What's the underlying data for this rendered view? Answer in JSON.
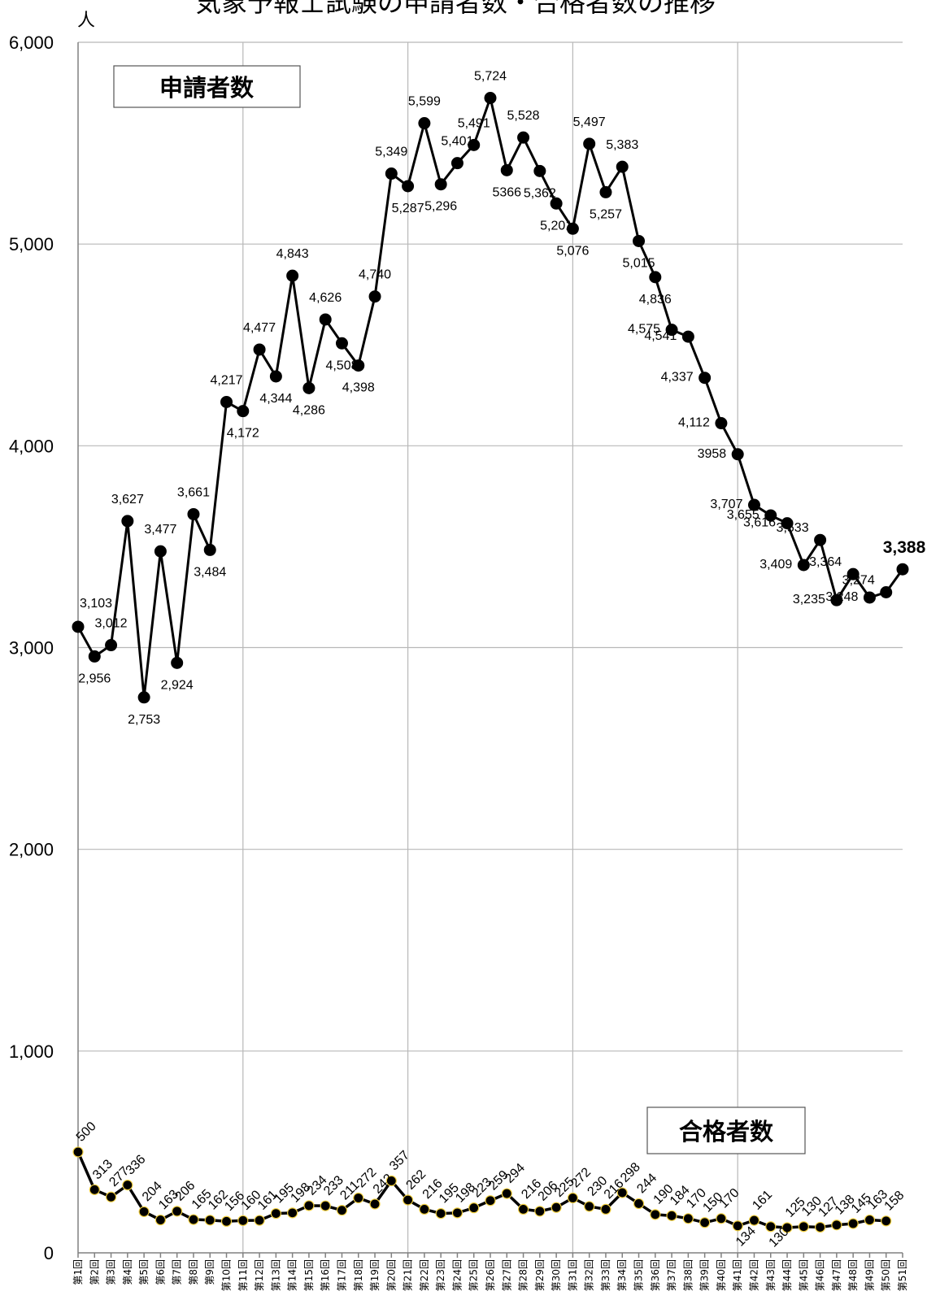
{
  "chart_data": {
    "type": "line",
    "title": "気象予報士試験の申請者数・合格者数の推移",
    "ylabel": "人",
    "ylim": [
      0,
      6000
    ],
    "yticks": [
      "0",
      "1,000",
      "2,000",
      "3,000",
      "4,000",
      "5,000",
      "6,000"
    ],
    "grid": true,
    "categories": [
      "第1回",
      "第2回",
      "第3回",
      "第4回",
      "第5回",
      "第6回",
      "第7回",
      "第8回",
      "第9回",
      "第10回",
      "第11回",
      "第12回",
      "第13回",
      "第14回",
      "第15回",
      "第16回",
      "第17回",
      "第18回",
      "第19回",
      "第20回",
      "第21回",
      "第22回",
      "第23回",
      "第24回",
      "第25回",
      "第26回",
      "第27回",
      "第28回",
      "第29回",
      "第30回",
      "第31回",
      "第32回",
      "第33回",
      "第34回",
      "第35回",
      "第36回",
      "第37回",
      "第38回",
      "第39回",
      "第40回",
      "第41回",
      "第42回",
      "第43回",
      "第44回",
      "第45回",
      "第46回",
      "第47回",
      "第48回",
      "第49回",
      "第50回",
      "第51回"
    ],
    "series": [
      {
        "name": "申請者数",
        "values": [
          3103,
          2956,
          3012,
          3627,
          2753,
          3477,
          2924,
          3661,
          3484,
          4217,
          4172,
          4477,
          4344,
          4843,
          4286,
          4626,
          4508,
          4398,
          4740,
          5349,
          5287,
          5599,
          5296,
          5401,
          5491,
          5724,
          5366,
          5528,
          5362,
          5201,
          5076,
          5497,
          5257,
          5383,
          5015,
          4836,
          4575,
          4541,
          4337,
          4112,
          3958,
          3707,
          3655,
          3616,
          3409,
          3533,
          3235,
          3364,
          3248,
          3274,
          3388
        ],
        "labels": [
          "3,103",
          "2,956",
          "3,012",
          "3,627",
          "2,753",
          "3,477",
          "2,924",
          "3,661",
          "3,484",
          "4,217",
          "4,172",
          "4,477",
          "4,344",
          "4,843",
          "4,286",
          "4,626",
          "4,508",
          "4,398",
          "4,740",
          "5,349",
          "5,287",
          "5,599",
          "5,296",
          "5,401",
          "5,491",
          "5,724",
          "5366",
          "5,528",
          "5,362",
          "5,201",
          "5,076",
          "5,497",
          "5,257",
          "5,383",
          "5,015",
          "4,836",
          "4,575",
          "4,541",
          "4,337",
          "4,112",
          "3958",
          "3,707",
          "3,655",
          "3,616",
          "3,409",
          "3,533",
          "3,235",
          "3,364",
          "3,248",
          "3,274",
          "3,388"
        ]
      },
      {
        "name": "合格者数",
        "values": [
          500,
          313,
          277,
          336,
          204,
          163,
          206,
          165,
          162,
          156,
          160,
          161,
          195,
          198,
          234,
          233,
          211,
          272,
          242,
          357,
          262,
          216,
          195,
          198,
          223,
          259,
          294,
          216,
          206,
          225,
          272,
          230,
          216,
          298,
          244,
          190,
          184,
          170,
          150,
          170,
          134,
          161,
          130,
          125,
          130,
          127,
          138,
          145,
          163,
          158,
          null
        ],
        "labels": [
          "500",
          "313",
          "277",
          "336",
          "204",
          "163",
          "206",
          "165",
          "162",
          "156",
          "160",
          "161",
          "195",
          "198",
          "234",
          "233",
          "211",
          "272",
          "242",
          "357",
          "262",
          "216",
          "195",
          "198",
          "223",
          "259",
          "294",
          "216",
          "206",
          "225",
          "272",
          "230",
          "216",
          "298",
          "244",
          "190",
          "184",
          "170",
          "150",
          "170",
          "134",
          "161",
          "130",
          "125",
          "130",
          "127",
          "138",
          "145",
          "163",
          "158",
          ""
        ]
      }
    ]
  }
}
